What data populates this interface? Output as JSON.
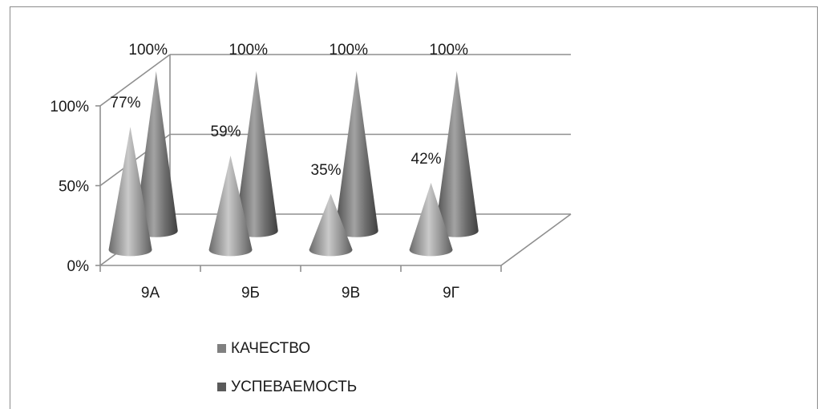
{
  "chart_data": {
    "type": "bar",
    "categories": [
      "9А",
      "9Б",
      "9В",
      "9Г"
    ],
    "series": [
      {
        "name": "КАЧЕСТВО",
        "values": [
          77,
          59,
          35,
          42
        ],
        "labels": [
          "77%",
          "59%",
          "35%",
          "42%"
        ],
        "color": "#808080"
      },
      {
        "name": "УСПЕВАЕМОСТЬ",
        "values": [
          100,
          100,
          100,
          100
        ],
        "labels": [
          "100%",
          "100%",
          "100%",
          "100%"
        ],
        "color": "#5a5a5a"
      }
    ],
    "yticks": [
      "0%",
      "50%",
      "100%"
    ],
    "ylim": [
      0,
      100
    ],
    "legend_position": "bottom-left",
    "shape": "cone",
    "grid": true
  }
}
